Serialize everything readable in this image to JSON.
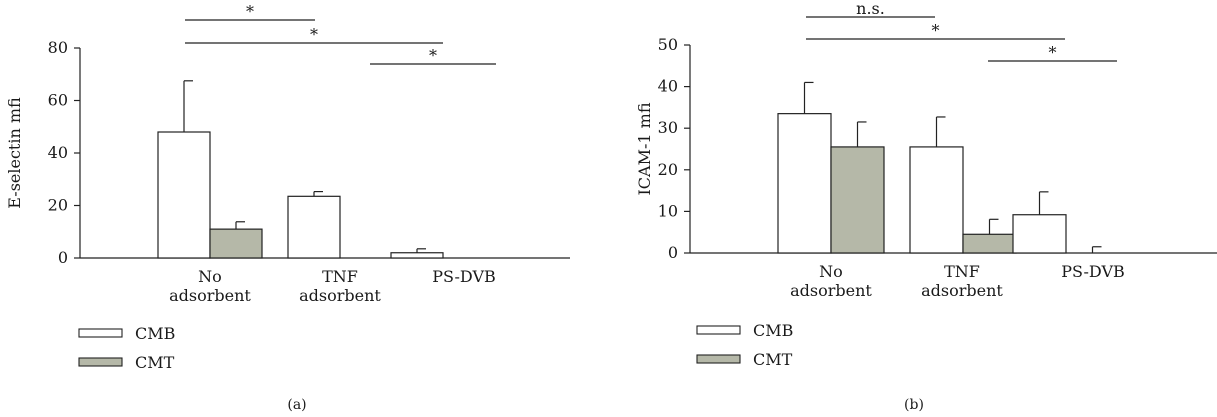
{
  "legend": [
    {
      "name": "CMB",
      "color": "#ffffff"
    },
    {
      "name": "CMT",
      "color": "#b5b8a8"
    }
  ],
  "chart_data": [
    {
      "type": "bar",
      "panel_label": "(a)",
      "ylabel": "E-selectin mfi",
      "ylim": [
        0,
        80
      ],
      "yticks": [
        0,
        20,
        40,
        60,
        80
      ],
      "categories": [
        [
          "No",
          "adsorbent"
        ],
        [
          "TNF",
          "adsorbent"
        ],
        [
          "PS-DVB"
        ]
      ],
      "series": [
        {
          "name": "CMB",
          "color": "#ffffff",
          "values": [
            48,
            23.5,
            2
          ],
          "errors": [
            19.5,
            1.8,
            1.5
          ]
        },
        {
          "name": "CMT",
          "color": "#b5b8a8",
          "values": [
            11,
            0,
            0
          ],
          "errors": [
            2.8,
            0,
            0
          ]
        }
      ],
      "significance": [
        {
          "label": "*",
          "from": 0,
          "to": 1
        },
        {
          "label": "*",
          "from": 0,
          "to": 2
        },
        {
          "label": "*",
          "from": 1,
          "to": 3
        }
      ]
    },
    {
      "type": "bar",
      "panel_label": "(b)",
      "ylabel": "ICAM-1 mfi",
      "ylim": [
        0,
        50
      ],
      "yticks": [
        0,
        10,
        20,
        30,
        40,
        50
      ],
      "categories": [
        [
          "No",
          "adsorbent"
        ],
        [
          "TNF",
          "adsorbent"
        ],
        [
          "PS-DVB"
        ]
      ],
      "series": [
        {
          "name": "CMB",
          "color": "#ffffff",
          "values": [
            33.5,
            25.5,
            9.2
          ],
          "errors": [
            7.5,
            7.2,
            5.5
          ]
        },
        {
          "name": "CMT",
          "color": "#b5b8a8",
          "values": [
            25.5,
            4.5,
            0
          ],
          "errors": [
            6,
            3.6,
            1.5
          ]
        }
      ],
      "significance": [
        {
          "label": "n.s.",
          "from": 0,
          "to": 1
        },
        {
          "label": "*",
          "from": 0,
          "to": 2
        },
        {
          "label": "*",
          "from": 1,
          "to": 3
        }
      ]
    }
  ]
}
